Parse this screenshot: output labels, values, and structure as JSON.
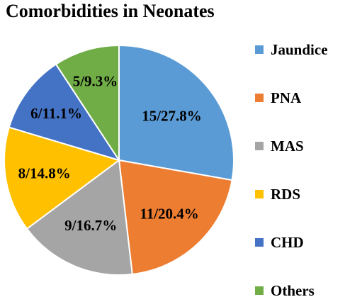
{
  "chart_data": {
    "type": "pie",
    "title": "Comorbidities in Neonates",
    "categories": [
      "Jaundice",
      "PNA",
      "MAS",
      "RDS",
      "CHD",
      "Others"
    ],
    "values": [
      15,
      11,
      9,
      8,
      6,
      5
    ],
    "percentages": [
      27.8,
      20.4,
      16.7,
      14.8,
      11.1,
      9.3
    ],
    "data_labels": [
      "15/27.8%",
      "11/20.4%",
      "9/16.7%",
      "8/14.8%",
      "6/11.1%",
      "5/9.3%"
    ],
    "colors": [
      "#5B9BD5",
      "#ED7D31",
      "#A5A5A5",
      "#FFC000",
      "#4472C4",
      "#70AD47"
    ],
    "start": "12 o'clock",
    "direction": "clockwise",
    "legend_position": "right"
  }
}
